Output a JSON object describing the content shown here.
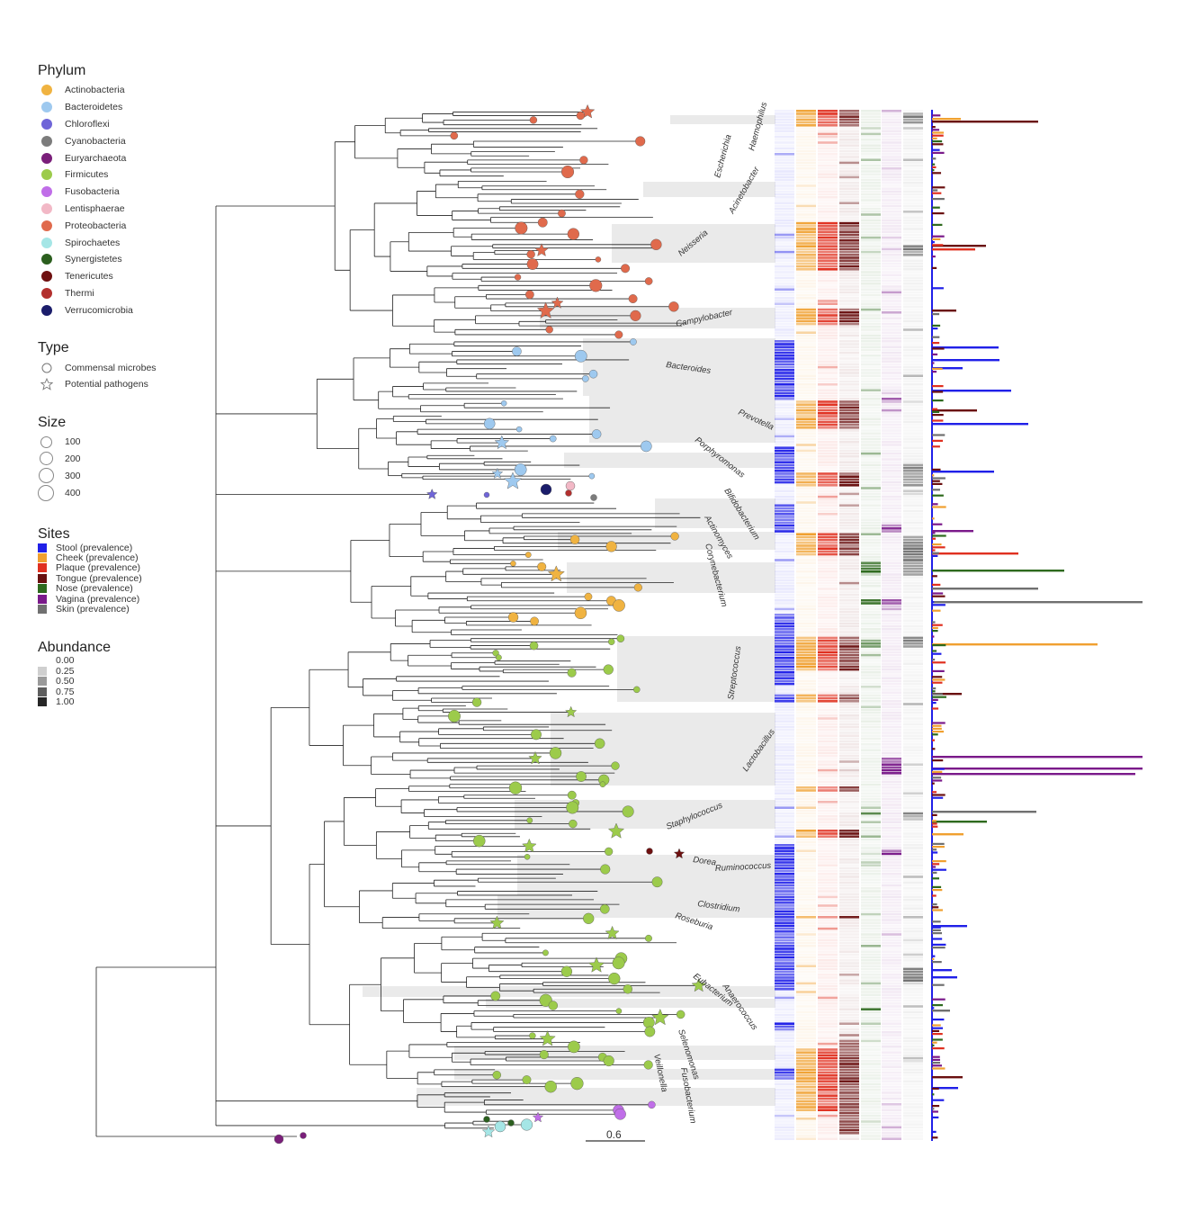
{
  "legend": {
    "phylum": {
      "title": "Phylum",
      "items": [
        {
          "label": "Actinobacteria",
          "color": "#f0b341"
        },
        {
          "label": "Bacteroidetes",
          "color": "#9ec9ef"
        },
        {
          "label": "Chloroflexi",
          "color": "#6f65d8"
        },
        {
          "label": "Cyanobacteria",
          "color": "#7c7c7c"
        },
        {
          "label": "Euryarchaeota",
          "color": "#7a1f7a"
        },
        {
          "label": "Firmicutes",
          "color": "#9ccb4b"
        },
        {
          "label": "Fusobacteria",
          "color": "#c06ee8"
        },
        {
          "label": "Lentisphaerae",
          "color": "#f2b8c6"
        },
        {
          "label": "Proteobacteria",
          "color": "#e06a4c"
        },
        {
          "label": "Spirochaetes",
          "color": "#a5e6e6"
        },
        {
          "label": "Synergistetes",
          "color": "#2b5e1e"
        },
        {
          "label": "Tenericutes",
          "color": "#6e1010"
        },
        {
          "label": "Thermi",
          "color": "#b3302e"
        },
        {
          "label": "Verrucomicrobia",
          "color": "#1b1d6b"
        }
      ]
    },
    "type": {
      "title": "Type",
      "items": [
        {
          "label": "Commensal microbes",
          "icon": "circle-icon"
        },
        {
          "label": "Potential pathogens",
          "icon": "star-icon"
        }
      ]
    },
    "size": {
      "title": "Size",
      "items": [
        {
          "label": "100",
          "value": 100
        },
        {
          "label": "200",
          "value": 200
        },
        {
          "label": "300",
          "value": 300
        },
        {
          "label": "400",
          "value": 400
        }
      ]
    },
    "sites": {
      "title": "Sites",
      "items": [
        {
          "label": "Stool (prevalence)",
          "color": "#2020e8"
        },
        {
          "label": "Cheek (prevalence)",
          "color": "#f0a030"
        },
        {
          "label": "Plaque (prevalence)",
          "color": "#e03020"
        },
        {
          "label": "Tongue (prevalence)",
          "color": "#6a1010"
        },
        {
          "label": "Nose (prevalence)",
          "color": "#2e6a1e"
        },
        {
          "label": "Vagina (prevalence)",
          "color": "#7a1a8a"
        },
        {
          "label": "Skin (prevalence)",
          "color": "#707070"
        }
      ]
    },
    "abundance": {
      "title": "Abundance",
      "items": [
        {
          "label": "0.00",
          "color": "#ffffff"
        },
        {
          "label": "0.25",
          "color": "#cfcfcf"
        },
        {
          "label": "0.50",
          "color": "#9a9a9a"
        },
        {
          "label": "0.75",
          "color": "#5e5e5e"
        },
        {
          "label": "1.00",
          "color": "#262626"
        }
      ]
    }
  },
  "clades": [
    {
      "label": "Haemophilus"
    },
    {
      "label": "Escherichia"
    },
    {
      "label": "Acinetobacter"
    },
    {
      "label": "Neisseria"
    },
    {
      "label": "Campylobacter"
    },
    {
      "label": "Bacteroides"
    },
    {
      "label": "Prevotella"
    },
    {
      "label": "Porphyromonas"
    },
    {
      "label": "Bifidobacterium"
    },
    {
      "label": "Actinomyces"
    },
    {
      "label": "Corynebacterium"
    },
    {
      "label": "Streptococcus"
    },
    {
      "label": "Lactobacillus"
    },
    {
      "label": "Staphylococcus"
    },
    {
      "label": "Dorea"
    },
    {
      "label": "Ruminococcus"
    },
    {
      "label": "Clostridium"
    },
    {
      "label": "Roseburia"
    },
    {
      "label": "Eubacterium"
    },
    {
      "label": "Anaerococcus"
    },
    {
      "label": "Selenomonas"
    },
    {
      "label": "Veillonella"
    },
    {
      "label": "Fusobacterium"
    }
  ],
  "scale_bar": {
    "label": "0.6"
  }
}
